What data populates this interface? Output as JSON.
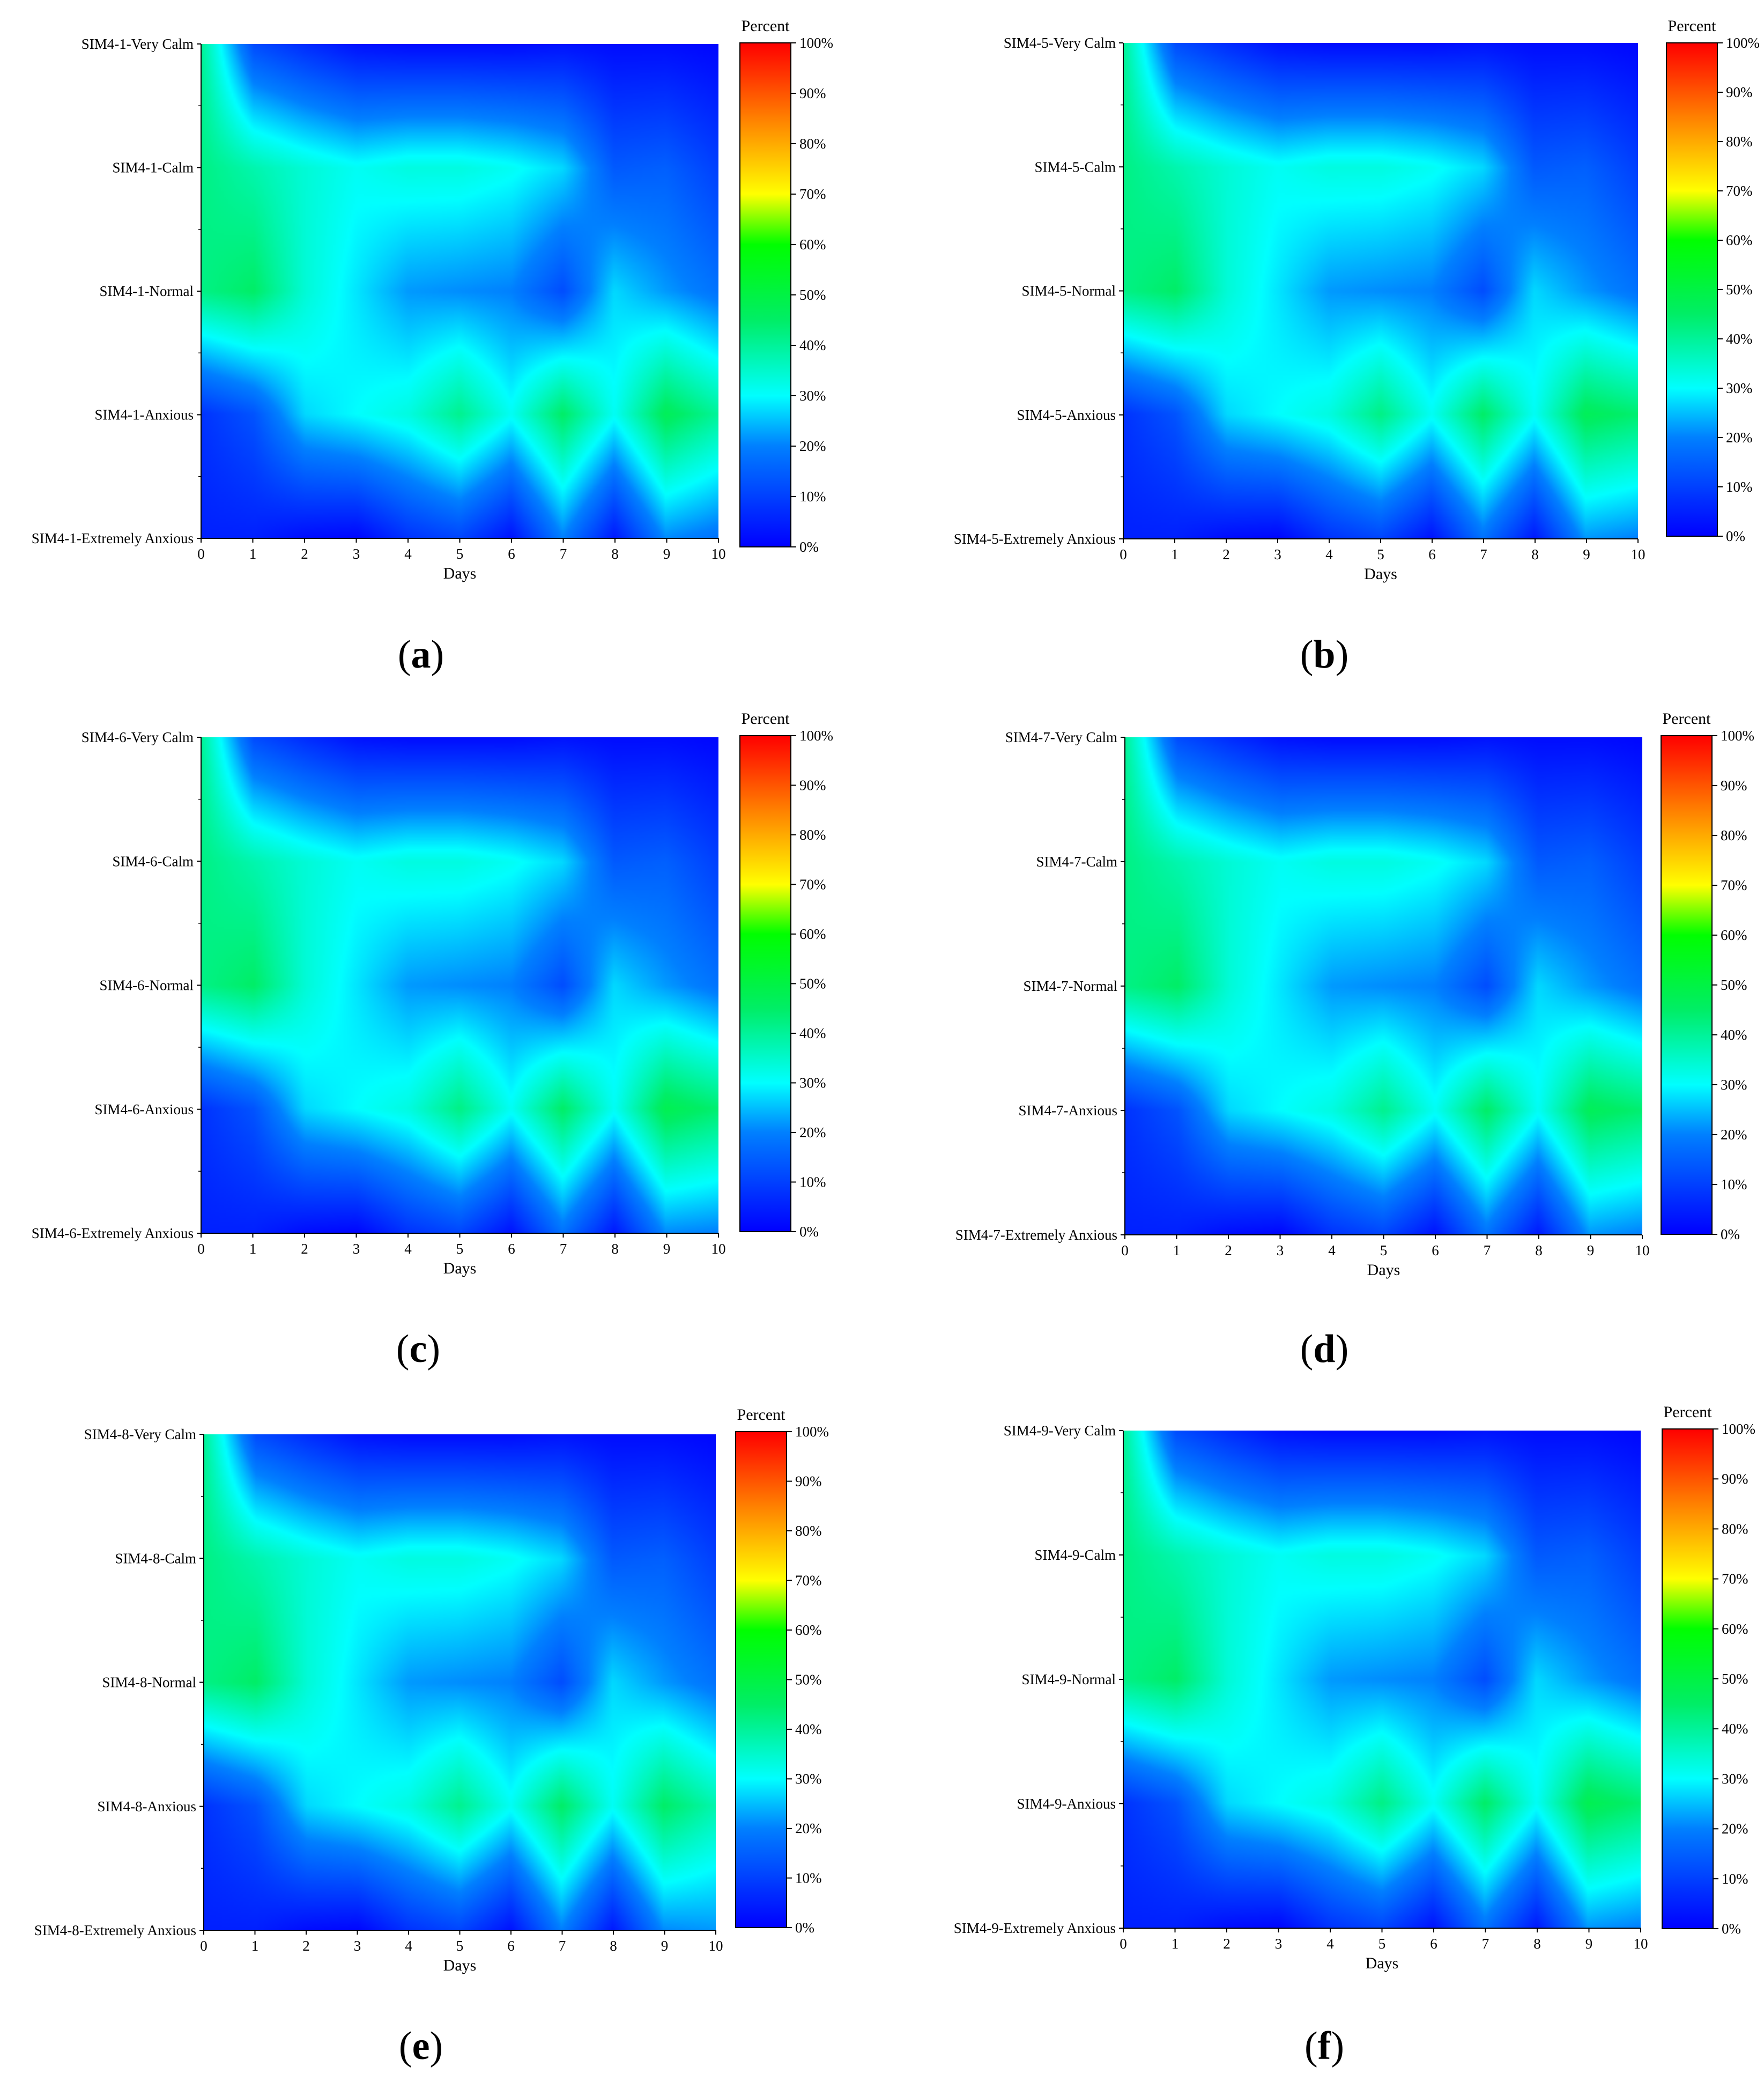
{
  "chart_data": [
    {
      "type": "heatmap",
      "panel_label": "a",
      "x": [
        0,
        1,
        2,
        3,
        4,
        5,
        6,
        7,
        8,
        9,
        10
      ],
      "xlabel": "Days",
      "xlim": [
        0,
        10
      ],
      "y_categories": [
        "SIM4-1-Very Calm",
        "SIM4-1-Calm",
        "SIM4-1-Normal",
        "SIM4-1-Anxious",
        "SIM4-1-Extremely Anxious"
      ],
      "colorbar_title": "Percent",
      "colorbar_ticks": [
        "0%",
        "10%",
        "20%",
        "30%",
        "40%",
        "50%",
        "60%",
        "70%",
        "80%",
        "90%",
        "100%"
      ],
      "z": [
        [
          40,
          12,
          7,
          3,
          2,
          2,
          2,
          3,
          2,
          2,
          1
        ],
        [
          42,
          38,
          34,
          31,
          33,
          33,
          31,
          27,
          14,
          15,
          10
        ],
        [
          42,
          45,
          34,
          28,
          22,
          21,
          20,
          12,
          27,
          22,
          18
        ],
        [
          8,
          13,
          27,
          30,
          33,
          41,
          31,
          45,
          31,
          47,
          40
        ],
        [
          5,
          5,
          2,
          1,
          8,
          11,
          3,
          20,
          4,
          21,
          18
        ]
      ]
    },
    {
      "type": "heatmap",
      "panel_label": "b",
      "x": [
        0,
        1,
        2,
        3,
        4,
        5,
        6,
        7,
        8,
        9,
        10
      ],
      "xlabel": "Days",
      "xlim": [
        0,
        10
      ],
      "y_categories": [
        "SIM4-5-Very Calm",
        "SIM4-5-Calm",
        "SIM4-5-Normal",
        "SIM4-5-Anxious",
        "SIM4-5-Extremely Anxious"
      ],
      "colorbar_title": "Percent",
      "colorbar_ticks": [
        "0%",
        "10%",
        "20%",
        "30%",
        "40%",
        "50%",
        "60%",
        "70%",
        "80%",
        "90%",
        "100%"
      ],
      "z": [
        [
          40,
          12,
          7,
          3,
          2,
          2,
          2,
          3,
          2,
          2,
          1
        ],
        [
          42,
          38,
          34,
          31,
          33,
          33,
          31,
          27,
          14,
          15,
          10
        ],
        [
          42,
          45,
          34,
          28,
          22,
          21,
          20,
          12,
          27,
          22,
          18
        ],
        [
          8,
          13,
          27,
          30,
          33,
          42,
          31,
          45,
          31,
          47,
          44
        ],
        [
          5,
          5,
          2,
          1,
          8,
          11,
          3,
          18,
          4,
          22,
          20
        ]
      ]
    },
    {
      "type": "heatmap",
      "panel_label": "c",
      "x": [
        0,
        1,
        2,
        3,
        4,
        5,
        6,
        7,
        8,
        9,
        10
      ],
      "xlabel": "Days",
      "xlim": [
        0,
        10
      ],
      "y_categories": [
        "SIM4-6-Very Calm",
        "SIM4-6-Calm",
        "SIM4-6-Normal",
        "SIM4-6-Anxious",
        "SIM4-6-Extremely Anxious"
      ],
      "colorbar_title": "Percent",
      "colorbar_ticks": [
        "0%",
        "10%",
        "20%",
        "30%",
        "40%",
        "50%",
        "60%",
        "70%",
        "80%",
        "90%",
        "100%"
      ],
      "z": [
        [
          40,
          12,
          7,
          3,
          2,
          2,
          2,
          3,
          2,
          2,
          1
        ],
        [
          42,
          38,
          34,
          31,
          33,
          33,
          31,
          27,
          14,
          15,
          10
        ],
        [
          42,
          45,
          34,
          28,
          22,
          21,
          20,
          12,
          27,
          22,
          18
        ],
        [
          8,
          13,
          27,
          30,
          33,
          42,
          31,
          45,
          31,
          48,
          44
        ],
        [
          5,
          5,
          2,
          1,
          8,
          11,
          3,
          18,
          4,
          21,
          20
        ]
      ]
    },
    {
      "type": "heatmap",
      "panel_label": "d",
      "x": [
        0,
        1,
        2,
        3,
        4,
        5,
        6,
        7,
        8,
        9,
        10
      ],
      "xlabel": "Days",
      "xlim": [
        0,
        10
      ],
      "y_categories": [
        "SIM4-7-Very Calm",
        "SIM4-7-Calm",
        "SIM4-7-Normal",
        "SIM4-7-Anxious",
        "SIM4-7-Extremely Anxious"
      ],
      "colorbar_title": "Percent",
      "colorbar_ticks": [
        "0%",
        "10%",
        "20%",
        "30%",
        "40%",
        "50%",
        "60%",
        "70%",
        "80%",
        "90%",
        "100%"
      ],
      "z": [
        [
          40,
          12,
          7,
          3,
          2,
          2,
          2,
          3,
          2,
          2,
          1
        ],
        [
          42,
          38,
          34,
          31,
          33,
          33,
          31,
          27,
          14,
          15,
          10
        ],
        [
          42,
          45,
          34,
          28,
          22,
          21,
          20,
          12,
          27,
          22,
          18
        ],
        [
          8,
          13,
          27,
          30,
          33,
          41,
          31,
          45,
          31,
          47,
          44
        ],
        [
          5,
          5,
          2,
          1,
          8,
          11,
          3,
          18,
          4,
          22,
          20
        ]
      ]
    },
    {
      "type": "heatmap",
      "panel_label": "e",
      "x": [
        0,
        1,
        2,
        3,
        4,
        5,
        6,
        7,
        8,
        9,
        10
      ],
      "xlabel": "Days",
      "xlim": [
        0,
        10
      ],
      "y_categories": [
        "SIM4-8-Very Calm",
        "SIM4-8-Calm",
        "SIM4-8-Normal",
        "SIM4-8-Anxious",
        "SIM4-8-Extremely Anxious"
      ],
      "colorbar_title": "Percent",
      "colorbar_ticks": [
        "0%",
        "10%",
        "20%",
        "30%",
        "40%",
        "50%",
        "60%",
        "70%",
        "80%",
        "90%",
        "100%"
      ],
      "z": [
        [
          40,
          12,
          7,
          3,
          2,
          2,
          2,
          3,
          2,
          2,
          1
        ],
        [
          42,
          38,
          34,
          31,
          33,
          33,
          31,
          27,
          14,
          15,
          10
        ],
        [
          42,
          45,
          34,
          28,
          22,
          21,
          20,
          12,
          27,
          22,
          18
        ],
        [
          8,
          13,
          27,
          30,
          33,
          41,
          31,
          45,
          31,
          45,
          38
        ],
        [
          5,
          5,
          2,
          1,
          8,
          11,
          3,
          20,
          4,
          21,
          22
        ]
      ]
    },
    {
      "type": "heatmap",
      "panel_label": "f",
      "x": [
        0,
        1,
        2,
        3,
        4,
        5,
        6,
        7,
        8,
        9,
        10
      ],
      "xlabel": "Days",
      "xlim": [
        0,
        10
      ],
      "y_categories": [
        "SIM4-9-Very Calm",
        "SIM4-9-Calm",
        "SIM4-9-Normal",
        "SIM4-9-Anxious",
        "SIM4-9-Extremely Anxious"
      ],
      "colorbar_title": "Percent",
      "colorbar_ticks": [
        "0%",
        "10%",
        "20%",
        "30%",
        "40%",
        "50%",
        "60%",
        "70%",
        "80%",
        "90%",
        "100%"
      ],
      "z": [
        [
          40,
          12,
          7,
          3,
          2,
          2,
          2,
          3,
          2,
          2,
          1
        ],
        [
          42,
          38,
          34,
          31,
          33,
          33,
          31,
          27,
          14,
          15,
          10
        ],
        [
          42,
          45,
          34,
          28,
          22,
          21,
          20,
          12,
          27,
          22,
          18
        ],
        [
          8,
          13,
          27,
          30,
          33,
          42,
          31,
          45,
          31,
          48,
          44
        ],
        [
          5,
          5,
          2,
          1,
          8,
          11,
          3,
          18,
          4,
          22,
          20
        ]
      ]
    }
  ],
  "colormap": {
    "stops": [
      [
        0.0,
        "#0000ff"
      ],
      [
        0.2,
        "#0080ff"
      ],
      [
        0.3,
        "#00ffff"
      ],
      [
        0.45,
        "#00ee66"
      ],
      [
        0.6,
        "#00ff00"
      ],
      [
        0.7,
        "#ffff00"
      ],
      [
        0.85,
        "#ff8000"
      ],
      [
        1.0,
        "#ff0000"
      ]
    ]
  }
}
